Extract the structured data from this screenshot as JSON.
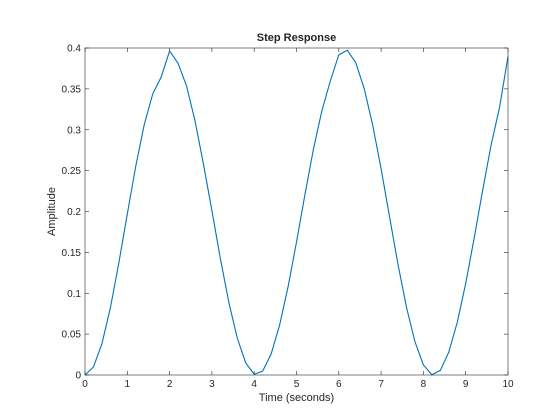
{
  "chart_data": {
    "type": "line",
    "title": "Step Response",
    "xlabel": "Time (seconds)",
    "ylabel": "Amplitude",
    "xlim": [
      0,
      10
    ],
    "ylim": [
      0,
      0.4
    ],
    "x_ticks": [
      0,
      1,
      2,
      3,
      4,
      5,
      6,
      7,
      8,
      9,
      10
    ],
    "x_tick_labels": [
      "0",
      "1",
      "2",
      "3",
      "4",
      "5",
      "6",
      "7",
      "8",
      "9",
      "10"
    ],
    "y_ticks": [
      0,
      0.05,
      0.1,
      0.15,
      0.2,
      0.25,
      0.3,
      0.35,
      0.4
    ],
    "y_tick_labels": [
      "0",
      "0.05",
      "0.1",
      "0.15",
      "0.2",
      "0.25",
      "0.3",
      "0.35",
      "0.4"
    ],
    "grid": false,
    "box": true,
    "series": [
      {
        "color": "#0072bd",
        "x": [
          0,
          0.2,
          0.4,
          0.6,
          0.8,
          1.0,
          1.2,
          1.4,
          1.6,
          1.8,
          2.0,
          2.2,
          2.4,
          2.6,
          2.8,
          3.0,
          3.2,
          3.4,
          3.6,
          3.8,
          4.0,
          4.2,
          4.4,
          4.6,
          4.8,
          5.0,
          5.2,
          5.4,
          5.6,
          5.8,
          6.0,
          6.2,
          6.4,
          6.6,
          6.8,
          7.0,
          7.2,
          7.4,
          7.6,
          7.8,
          8.0,
          8.2,
          8.4,
          8.6,
          8.8,
          9.0,
          9.2,
          9.4,
          9.6,
          9.8,
          10.0
        ],
        "y": [
          0,
          0.0098,
          0.0382,
          0.0822,
          0.1371,
          0.1969,
          0.2554,
          0.3062,
          0.3436,
          0.3643,
          0.3964,
          0.3813,
          0.3536,
          0.3111,
          0.2581,
          0.2011,
          0.1425,
          0.0889,
          0.0451,
          0.0148,
          0.0009,
          0.0048,
          0.0256,
          0.0609,
          0.1076,
          0.1626,
          0.2208,
          0.2762,
          0.3232,
          0.3598,
          0.3916,
          0.3973,
          0.3822,
          0.3504,
          0.306,
          0.2523,
          0.1934,
          0.1351,
          0.0829,
          0.0408,
          0.0123,
          0.0003,
          0.0056,
          0.028,
          0.0644,
          0.1119,
          0.1674,
          0.2257,
          0.2811,
          0.3273,
          0.3896
        ]
      }
    ]
  }
}
